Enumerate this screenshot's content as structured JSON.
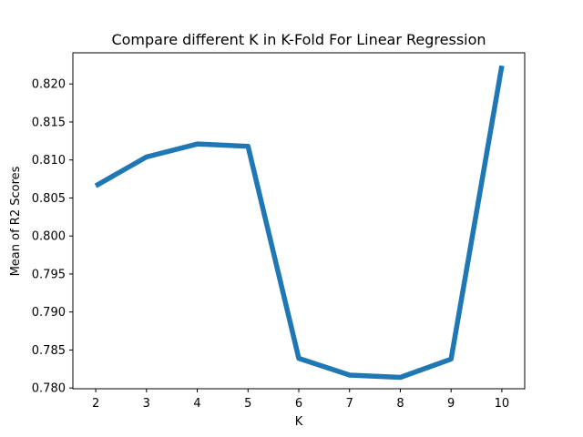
{
  "chart_data": {
    "type": "line",
    "title": "Compare different K in K-Fold For Linear Regression",
    "xlabel": "K",
    "ylabel": "Mean of R2 Scores",
    "x": [
      2,
      3,
      4,
      5,
      6,
      7,
      8,
      9,
      10
    ],
    "x_tick_labels": [
      "2",
      "3",
      "4",
      "5",
      "6",
      "7",
      "8",
      "9",
      "10"
    ],
    "y_ticks": [
      0.78,
      0.785,
      0.79,
      0.795,
      0.8,
      0.805,
      0.81,
      0.815,
      0.82
    ],
    "y_tick_labels": [
      "0.780",
      "0.785",
      "0.790",
      "0.795",
      "0.800",
      "0.805",
      "0.810",
      "0.815",
      "0.820"
    ],
    "xlim": [
      1.55,
      10.45
    ],
    "ylim": [
      0.7799,
      0.8241
    ],
    "grid": false,
    "series": [
      {
        "values": [
          0.8066,
          0.8104,
          0.8121,
          0.8118,
          0.7839,
          0.7817,
          0.7814,
          0.7838,
          0.8224
        ],
        "color": "#1f77b4"
      }
    ]
  }
}
